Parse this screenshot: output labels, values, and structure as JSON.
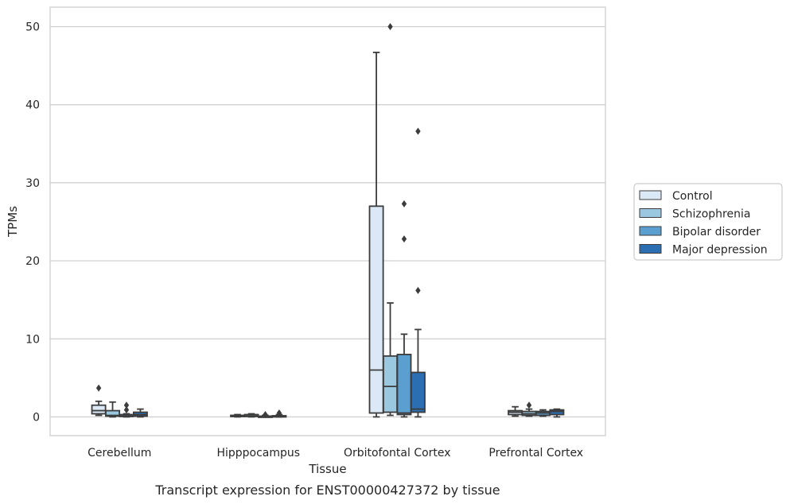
{
  "chart_data": {
    "type": "box",
    "title": "",
    "caption": "Transcript expression for ENST00000427372 by tissue",
    "xlabel": "Tissue",
    "ylabel": "TPMs",
    "ylim": [
      -2.4,
      52.5
    ],
    "yticks": [
      0,
      10,
      20,
      30,
      40,
      50
    ],
    "grid": "horizontal",
    "legend_position": "right",
    "categories": [
      "Cerebellum",
      "Hipppocampus",
      "Orbitofontal Cortex",
      "Prefrontal Cortex"
    ],
    "series": [
      {
        "name": "Control",
        "color": "#dbe9f6",
        "boxes": [
          {
            "min": 0.2,
            "q1": 0.4,
            "median": 0.8,
            "q3": 1.5,
            "max": 2.0,
            "outliers": [
              3.7
            ]
          },
          {
            "min": 0.0,
            "q1": 0.05,
            "median": 0.1,
            "q3": 0.2,
            "max": 0.3,
            "outliers": []
          },
          {
            "min": 0.0,
            "q1": 0.5,
            "median": 6.0,
            "q3": 27.0,
            "max": 46.7,
            "outliers": []
          },
          {
            "min": 0.1,
            "q1": 0.3,
            "median": 0.6,
            "q3": 0.8,
            "max": 1.3,
            "outliers": []
          }
        ]
      },
      {
        "name": "Schizophrenia",
        "color": "#9ac8e0",
        "boxes": [
          {
            "min": 0.0,
            "q1": 0.1,
            "median": 0.2,
            "q3": 0.8,
            "max": 1.9,
            "outliers": []
          },
          {
            "min": 0.0,
            "q1": 0.05,
            "median": 0.1,
            "q3": 0.3,
            "max": 0.4,
            "outliers": []
          },
          {
            "min": 0.2,
            "q1": 0.6,
            "median": 3.9,
            "q3": 7.8,
            "max": 14.6,
            "outliers": [
              50.0
            ]
          },
          {
            "min": 0.1,
            "q1": 0.2,
            "median": 0.4,
            "q3": 0.7,
            "max": 1.0,
            "outliers": [
              1.5
            ]
          }
        ]
      },
      {
        "name": "Bipolar disorder",
        "color": "#5a9fcf",
        "boxes": [
          {
            "min": 0.0,
            "q1": 0.05,
            "median": 0.1,
            "q3": 0.3,
            "max": 0.4,
            "outliers": [
              0.9,
              1.5
            ]
          },
          {
            "min": 0.0,
            "q1": 0.02,
            "median": 0.05,
            "q3": 0.1,
            "max": 0.2,
            "outliers": [
              0.3
            ]
          },
          {
            "min": 0.0,
            "q1": 0.3,
            "median": 0.5,
            "q3": 8.0,
            "max": 10.6,
            "outliers": [
              22.8,
              27.3
            ]
          },
          {
            "min": 0.1,
            "q1": 0.2,
            "median": 0.5,
            "q3": 0.7,
            "max": 0.9,
            "outliers": []
          }
        ]
      },
      {
        "name": "Major depression",
        "color": "#2b6eb2",
        "boxes": [
          {
            "min": 0.0,
            "q1": 0.1,
            "median": 0.3,
            "q3": 0.6,
            "max": 1.0,
            "outliers": []
          },
          {
            "min": 0.0,
            "q1": 0.02,
            "median": 0.05,
            "q3": 0.15,
            "max": 0.3,
            "outliers": [
              0.5
            ]
          },
          {
            "min": 0.0,
            "q1": 0.6,
            "median": 1.0,
            "q3": 5.7,
            "max": 11.2,
            "outliers": [
              16.2,
              36.6
            ]
          },
          {
            "min": 0.0,
            "q1": 0.3,
            "median": 0.7,
            "q3": 0.9,
            "max": 1.0,
            "outliers": []
          }
        ]
      }
    ]
  }
}
